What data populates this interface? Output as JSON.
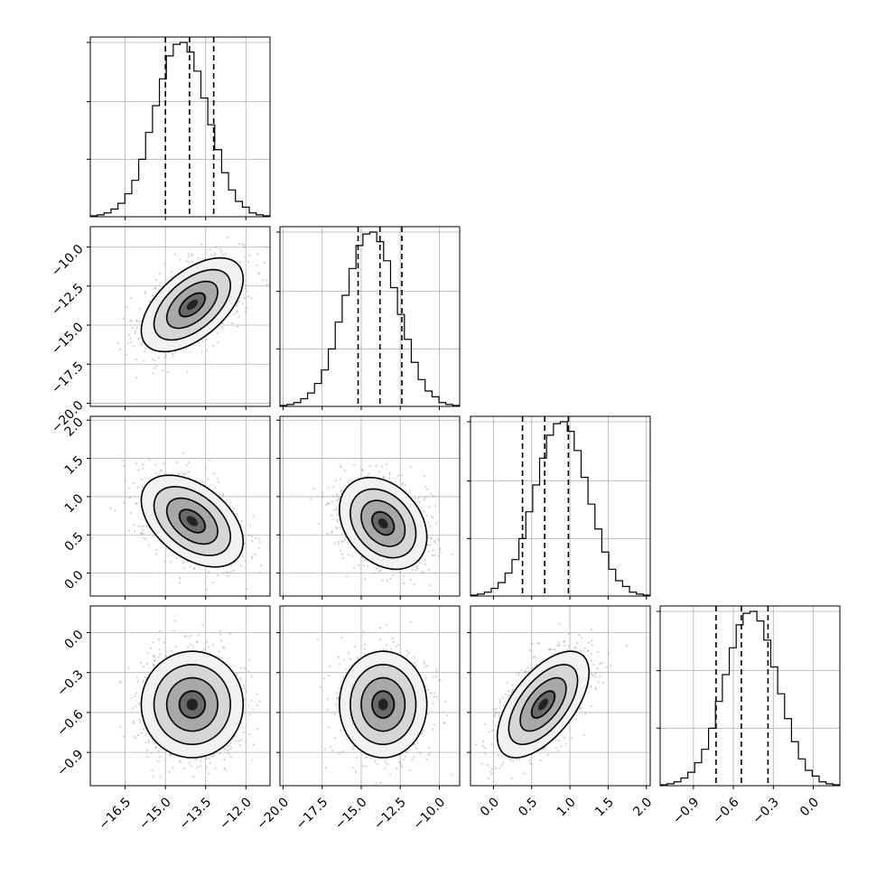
{
  "chart_data": {
    "type": "corner",
    "grid": true,
    "parameters": [
      {
        "range": [
          -17.8,
          -11.1
        ],
        "ticks": [
          -16.5,
          -15.0,
          -13.5,
          -12.0
        ],
        "tick_labels": [
          "−16.5",
          "−15.0",
          "−13.5",
          "−12.0"
        ],
        "quantiles": [
          -15.0,
          -14.1,
          -13.2
        ],
        "hist": [
          0.5,
          1,
          2,
          4,
          7,
          12,
          19,
          30,
          44,
          58,
          72,
          84,
          90,
          91,
          86,
          76,
          62,
          48,
          35,
          23,
          14,
          8,
          5,
          2,
          1,
          0.5
        ]
      },
      {
        "range": [
          -20.2,
          -8.7
        ],
        "ticks": [
          -20.0,
          -17.5,
          -15.0,
          -12.5,
          -10.0
        ],
        "tick_labels": [
          "−20.0",
          "−17.5",
          "−15.0",
          "−12.5",
          "−10.0"
        ],
        "quantiles": [
          -15.2,
          -13.8,
          -12.4
        ],
        "hist": [
          0.5,
          1,
          2,
          4,
          7,
          12,
          19,
          30,
          44,
          58,
          72,
          84,
          90,
          91,
          86,
          76,
          62,
          48,
          35,
          23,
          14,
          8,
          5,
          2,
          1,
          0.5
        ]
      },
      {
        "range": [
          -0.3,
          2.05
        ],
        "ticks": [
          0.0,
          0.5,
          1.0,
          1.5,
          2.0
        ],
        "tick_labels": [
          "0.0",
          "0.5",
          "1.0",
          "1.5",
          "2.0"
        ],
        "quantiles": [
          0.38,
          0.67,
          0.98
        ],
        "hist": [
          0.5,
          1,
          2,
          4,
          7,
          12,
          19,
          30,
          44,
          58,
          72,
          84,
          90,
          91,
          86,
          76,
          62,
          48,
          35,
          23,
          14,
          8,
          5,
          2,
          1,
          0.5
        ]
      },
      {
        "range": [
          -1.15,
          0.2
        ],
        "ticks": [
          -0.9,
          -0.6,
          -0.3,
          0.0
        ],
        "tick_labels": [
          "−0.9",
          "−0.6",
          "−0.3",
          "0.0"
        ],
        "quantiles": [
          -0.73,
          -0.54,
          -0.34
        ],
        "hist": [
          0.5,
          1,
          2,
          4,
          7,
          12,
          19,
          30,
          44,
          58,
          72,
          84,
          90,
          91,
          86,
          76,
          62,
          48,
          35,
          23,
          14,
          8,
          5,
          2,
          1,
          0.5
        ]
      }
    ],
    "pairs": [
      {
        "x": 0,
        "y": 1,
        "mean": [
          -14.0,
          -13.7
        ],
        "sd": [
          0.95,
          1.5
        ],
        "corr": 0.55
      },
      {
        "x": 0,
        "y": 2,
        "mean": [
          -14.0,
          0.68
        ],
        "sd": [
          0.95,
          0.3
        ],
        "corr": -0.45
      },
      {
        "x": 1,
        "y": 2,
        "mean": [
          -13.6,
          0.65
        ],
        "sd": [
          1.4,
          0.3
        ],
        "corr": -0.3
      },
      {
        "x": 0,
        "y": 3,
        "mean": [
          -14.0,
          -0.54
        ],
        "sd": [
          0.95,
          0.2
        ],
        "corr": 0.0
      },
      {
        "x": 1,
        "y": 3,
        "mean": [
          -13.6,
          -0.54
        ],
        "sd": [
          1.4,
          0.2
        ],
        "corr": 0.0
      },
      {
        "x": 2,
        "y": 3,
        "mean": [
          0.65,
          -0.54
        ],
        "sd": [
          0.3,
          0.2
        ],
        "corr": 0.6
      }
    ]
  }
}
